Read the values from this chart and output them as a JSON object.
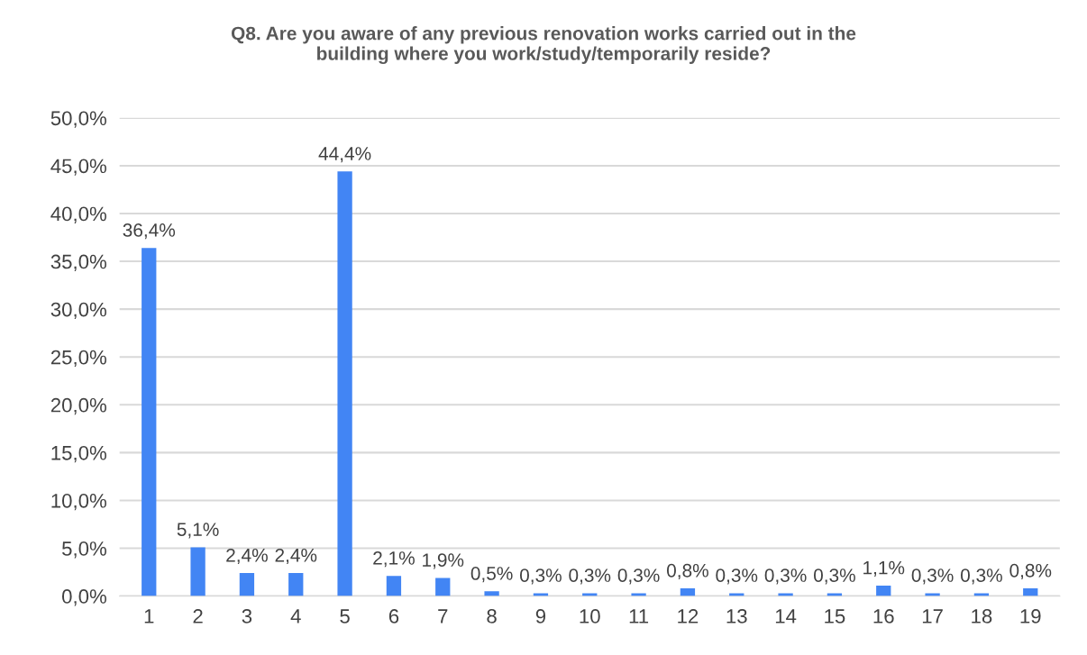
{
  "chart_data": {
    "type": "bar",
    "title": "Q8. Are you aware of any previous renovation works carried out in the\nbuilding where you work/study/temporarily reside?",
    "categories": [
      "1",
      "2",
      "3",
      "4",
      "5",
      "6",
      "7",
      "8",
      "9",
      "10",
      "11",
      "12",
      "13",
      "14",
      "15",
      "16",
      "17",
      "18",
      "19"
    ],
    "values": [
      36.4,
      5.1,
      2.4,
      2.4,
      44.4,
      2.1,
      1.9,
      0.5,
      0.3,
      0.3,
      0.3,
      0.8,
      0.3,
      0.3,
      0.3,
      1.1,
      0.3,
      0.3,
      0.8
    ],
    "value_labels": [
      "36,4%",
      "5,1%",
      "2,4%",
      "2,4%",
      "44,4%",
      "2,1%",
      "1,9%",
      "0,5%",
      "0,3%",
      "0,3%",
      "0,3%",
      "0,8%",
      "0,3%",
      "0,3%",
      "0,3%",
      "1,1%",
      "0,3%",
      "0,3%",
      "0,8%"
    ],
    "color": "#4285f4",
    "ylim": [
      0,
      50
    ],
    "yticks": [
      {
        "value": 0,
        "label": "0,0%"
      },
      {
        "value": 5,
        "label": "5,0%"
      },
      {
        "value": 10,
        "label": "10,0%"
      },
      {
        "value": 15,
        "label": "15,0%"
      },
      {
        "value": 20,
        "label": "20,0%"
      },
      {
        "value": 25,
        "label": "25,0%"
      },
      {
        "value": 30,
        "label": "30,0%"
      },
      {
        "value": 35,
        "label": "35,0%"
      },
      {
        "value": 40,
        "label": "40,0%"
      },
      {
        "value": 45,
        "label": "45,0%"
      },
      {
        "value": 50,
        "label": "50,0%"
      }
    ],
    "grid": "y"
  }
}
